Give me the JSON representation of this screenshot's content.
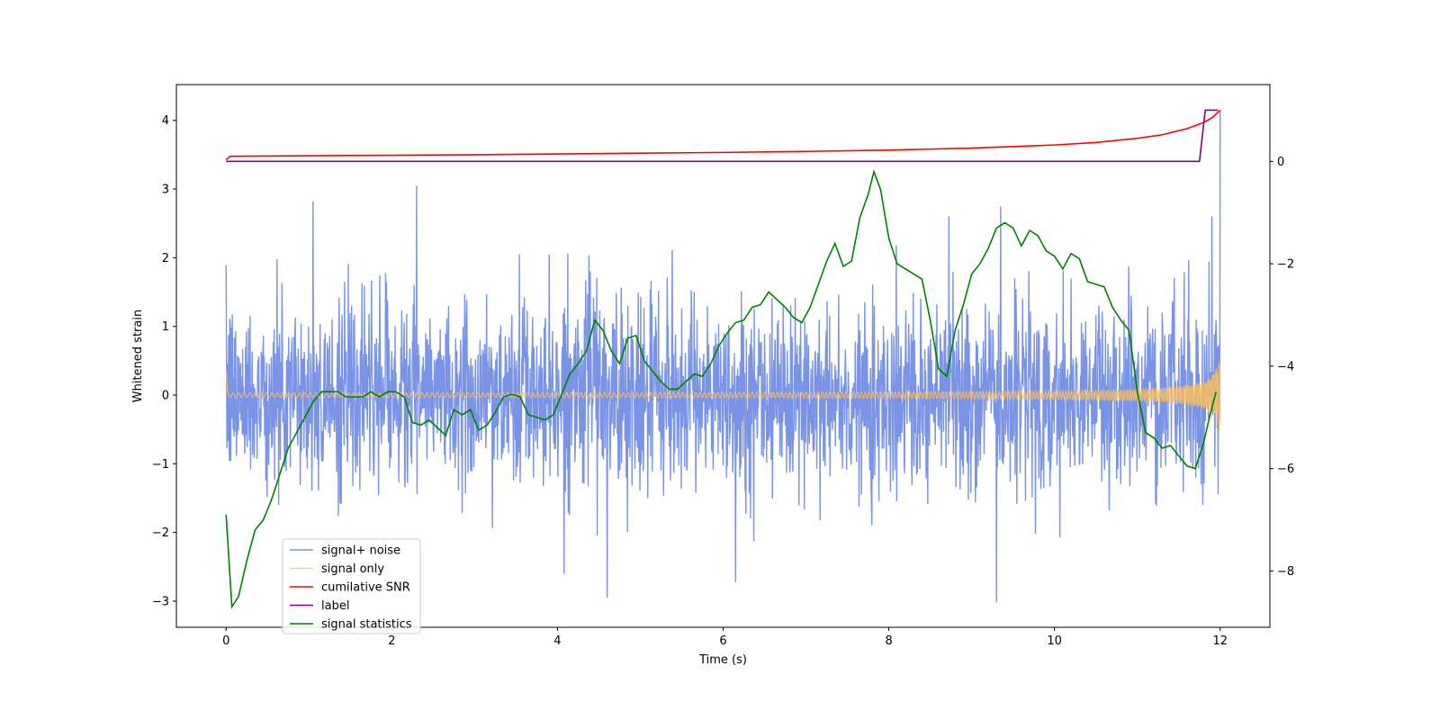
{
  "chart_data": {
    "type": "line",
    "title": "",
    "xlabel": "Time (s)",
    "ylabel": "Whitened strain",
    "y2label": "",
    "xlim": [
      -0.6,
      12.6
    ],
    "ylim": [
      -3.38,
      4.52
    ],
    "y2lim": [
      -9.1,
      1.5
    ],
    "xticks": [
      0,
      2,
      4,
      6,
      8,
      10,
      12
    ],
    "yticks": [
      -3,
      -2,
      -1,
      0,
      1,
      2,
      3,
      4
    ],
    "y2ticks": [
      -8,
      -6,
      -4,
      -2,
      0
    ],
    "grid": false,
    "legend": "lower-left",
    "series": [
      {
        "name": "signal+ noise",
        "color": "#7994e6",
        "axis": "left",
        "kind": "noise",
        "x_range": [
          0,
          12
        ],
        "typical_amplitude": 1.5,
        "peaks": [
          {
            "x": 2.3,
            "y": 3.05
          },
          {
            "x": 1.05,
            "y": 2.82
          },
          {
            "x": 4.6,
            "y": -2.95
          },
          {
            "x": 6.15,
            "y": -2.72
          },
          {
            "x": 9.3,
            "y": -3.02
          },
          {
            "x": 9.35,
            "y": 2.75
          },
          {
            "x": 11.9,
            "y": 2.6
          },
          {
            "x": 12.0,
            "y": 4.15
          }
        ]
      },
      {
        "name": "signal only",
        "color": "#ffbf5a",
        "axis": "left",
        "kind": "chirp",
        "x_range": [
          0,
          12
        ],
        "amplitude_start": 0.02,
        "amplitude_end": 0.6,
        "start_spike": 0.38
      },
      {
        "name": "cumilative SNR",
        "color": "#ff0000",
        "axis": "right",
        "x": [
          0,
          0.05,
          1,
          2,
          3,
          4,
          5,
          6,
          7,
          8,
          9,
          10,
          10.5,
          11,
          11.3,
          11.6,
          11.8,
          11.9,
          12.0
        ],
        "values": [
          0.03,
          0.1,
          0.11,
          0.12,
          0.13,
          0.145,
          0.16,
          0.175,
          0.195,
          0.22,
          0.26,
          0.32,
          0.37,
          0.45,
          0.52,
          0.64,
          0.76,
          0.85,
          1.0
        ]
      },
      {
        "name": "label",
        "color": "#800080",
        "axis": "right",
        "x": [
          0,
          11.75,
          11.82,
          11.97
        ],
        "values": [
          0,
          0,
          1.0,
          1.0
        ]
      },
      {
        "name": "signal statistics",
        "color": "#008000",
        "axis": "right",
        "x": [
          0,
          0.07,
          0.15,
          0.25,
          0.35,
          0.45,
          0.55,
          0.65,
          0.75,
          0.85,
          0.95,
          1.05,
          1.15,
          1.25,
          1.35,
          1.45,
          1.55,
          1.65,
          1.75,
          1.85,
          1.95,
          2.05,
          2.15,
          2.25,
          2.35,
          2.45,
          2.55,
          2.65,
          2.75,
          2.85,
          2.95,
          3.05,
          3.15,
          3.25,
          3.35,
          3.45,
          3.55,
          3.65,
          3.75,
          3.85,
          3.95,
          4.05,
          4.15,
          4.25,
          4.35,
          4.45,
          4.55,
          4.65,
          4.75,
          4.85,
          4.95,
          5.05,
          5.15,
          5.25,
          5.35,
          5.45,
          5.55,
          5.65,
          5.75,
          5.85,
          5.95,
          6.05,
          6.15,
          6.25,
          6.35,
          6.45,
          6.55,
          6.65,
          6.75,
          6.85,
          6.95,
          7.05,
          7.15,
          7.25,
          7.35,
          7.45,
          7.55,
          7.65,
          7.75,
          7.82,
          7.9,
          8.0,
          8.1,
          8.2,
          8.3,
          8.4,
          8.5,
          8.6,
          8.7,
          8.8,
          8.9,
          9.0,
          9.1,
          9.2,
          9.3,
          9.4,
          9.5,
          9.6,
          9.7,
          9.8,
          9.9,
          10.0,
          10.1,
          10.2,
          10.3,
          10.4,
          10.5,
          10.6,
          10.7,
          10.8,
          10.9,
          11.0,
          11.1,
          11.2,
          11.3,
          11.4,
          11.5,
          11.6,
          11.7,
          11.8,
          11.87,
          11.95
        ],
        "values": [
          -6.9,
          -8.7,
          -8.5,
          -7.8,
          -7.2,
          -7.0,
          -6.6,
          -6.1,
          -5.6,
          -5.3,
          -5.0,
          -4.7,
          -4.5,
          -4.5,
          -4.5,
          -4.6,
          -4.6,
          -4.6,
          -4.5,
          -4.6,
          -4.5,
          -4.5,
          -4.6,
          -5.1,
          -5.15,
          -5.05,
          -5.2,
          -5.35,
          -4.85,
          -4.95,
          -4.85,
          -5.25,
          -5.15,
          -4.9,
          -4.6,
          -4.55,
          -4.6,
          -4.95,
          -5.0,
          -5.05,
          -4.95,
          -4.55,
          -4.15,
          -3.95,
          -3.7,
          -3.1,
          -3.3,
          -3.7,
          -3.95,
          -3.45,
          -3.4,
          -3.9,
          -4.1,
          -4.3,
          -4.45,
          -4.45,
          -4.3,
          -4.15,
          -4.2,
          -3.95,
          -3.6,
          -3.35,
          -3.15,
          -3.1,
          -2.85,
          -2.8,
          -2.55,
          -2.7,
          -2.85,
          -3.05,
          -3.15,
          -2.85,
          -2.4,
          -1.95,
          -1.6,
          -2.05,
          -1.95,
          -1.1,
          -0.65,
          -0.2,
          -0.55,
          -1.5,
          -2.0,
          -2.1,
          -2.2,
          -2.3,
          -3.1,
          -4.05,
          -4.2,
          -3.3,
          -2.8,
          -2.2,
          -2.0,
          -1.7,
          -1.3,
          -1.2,
          -1.3,
          -1.65,
          -1.35,
          -1.45,
          -1.75,
          -1.85,
          -2.1,
          -1.8,
          -1.9,
          -2.35,
          -2.4,
          -2.45,
          -2.85,
          -3.1,
          -3.3,
          -4.5,
          -5.3,
          -5.4,
          -5.6,
          -5.55,
          -5.75,
          -5.95,
          -6.0,
          -5.5,
          -5.0,
          -4.5
        ]
      }
    ]
  }
}
